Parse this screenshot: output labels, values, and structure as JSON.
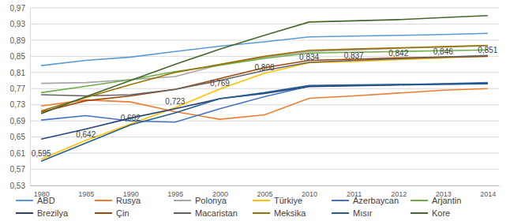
{
  "chart_data": {
    "type": "line",
    "categories": [
      "1980",
      "1985",
      "1990",
      "1995",
      "2000",
      "2005",
      "2010",
      "2011",
      "2012",
      "2013",
      "2014"
    ],
    "ylim": [
      0.53,
      0.97
    ],
    "yticks": [
      {
        "value": 0.53,
        "label": "0,53"
      },
      {
        "value": 0.57,
        "label": "0,57"
      },
      {
        "value": 0.61,
        "label": "0,61"
      },
      {
        "value": 0.65,
        "label": "0,65"
      },
      {
        "value": 0.69,
        "label": "0,69"
      },
      {
        "value": 0.73,
        "label": "0,73"
      },
      {
        "value": 0.77,
        "label": "0,77"
      },
      {
        "value": 0.81,
        "label": "0,81"
      },
      {
        "value": 0.85,
        "label": "0,85"
      },
      {
        "value": 0.89,
        "label": "0,89"
      },
      {
        "value": 0.93,
        "label": "0,93"
      },
      {
        "value": 0.97,
        "label": "0,97"
      }
    ],
    "grid": true,
    "legend": "bottom",
    "series": [
      {
        "name": "ABD",
        "color": "#5B9BD5",
        "values": [
          0.827,
          0.84,
          0.848,
          0.862,
          0.875,
          0.886,
          0.898,
          0.9,
          0.902,
          0.904,
          0.907
        ]
      },
      {
        "name": "Rusya",
        "color": "#ED7D31",
        "values": [
          0.727,
          0.742,
          0.737,
          0.713,
          0.694,
          0.705,
          0.746,
          0.752,
          0.759,
          0.766,
          0.77
        ]
      },
      {
        "name": "Polonya",
        "color": "#A5A5A5",
        "values": [
          0.783,
          0.785,
          0.792,
          0.8,
          0.829,
          0.848,
          0.862,
          0.866,
          0.87,
          0.873,
          0.876
        ]
      },
      {
        "name": "Türkiye",
        "color": "#FFC000",
        "data_labels": true,
        "values": [
          0.595,
          0.642,
          0.682,
          0.723,
          0.769,
          0.808,
          0.834,
          0.837,
          0.842,
          0.846,
          0.851
        ],
        "value_labels": [
          "0,595",
          "0,642",
          "0,682",
          "0,723",
          "0,769",
          "0,808",
          "0,834",
          "0,837",
          "0,842",
          "0,846",
          "0,851"
        ]
      },
      {
        "name": "Azerbaycan",
        "color": "#4472C4",
        "values": [
          0.692,
          0.703,
          0.69,
          0.687,
          0.72,
          0.75,
          0.776,
          0.778,
          0.78,
          0.782,
          0.785
        ]
      },
      {
        "name": "Arjantin",
        "color": "#70AD47",
        "values": [
          0.76,
          0.776,
          0.792,
          0.812,
          0.828,
          0.845,
          0.858,
          0.86,
          0.862,
          0.864,
          0.866
        ]
      },
      {
        "name": "Brezilya",
        "color": "#264478",
        "values": [
          0.645,
          0.67,
          0.697,
          0.72,
          0.745,
          0.758,
          0.775,
          0.777,
          0.779,
          0.781,
          0.783
        ]
      },
      {
        "name": "Çin",
        "color": "#9E480E",
        "values": [
          0.712,
          0.74,
          0.752,
          0.768,
          0.795,
          0.822,
          0.84,
          0.843,
          0.846,
          0.848,
          0.85
        ]
      },
      {
        "name": "Macaristan",
        "color": "#636363",
        "values": [
          0.755,
          0.752,
          0.755,
          0.768,
          0.79,
          0.815,
          0.835,
          0.84,
          0.844,
          0.848,
          0.852
        ]
      },
      {
        "name": "Meksika",
        "color": "#997300",
        "values": [
          0.715,
          0.748,
          0.78,
          0.81,
          0.83,
          0.85,
          0.865,
          0.868,
          0.871,
          0.874,
          0.877
        ]
      },
      {
        "name": "Mısır",
        "color": "#255E91",
        "values": [
          0.59,
          0.635,
          0.68,
          0.71,
          0.745,
          0.76,
          0.778,
          0.779,
          0.78,
          0.781,
          0.782
        ]
      },
      {
        "name": "Kore",
        "color": "#43682B",
        "values": [
          0.708,
          0.75,
          0.79,
          0.83,
          0.868,
          0.902,
          0.935,
          0.938,
          0.941,
          0.946,
          0.951
        ]
      }
    ]
  }
}
